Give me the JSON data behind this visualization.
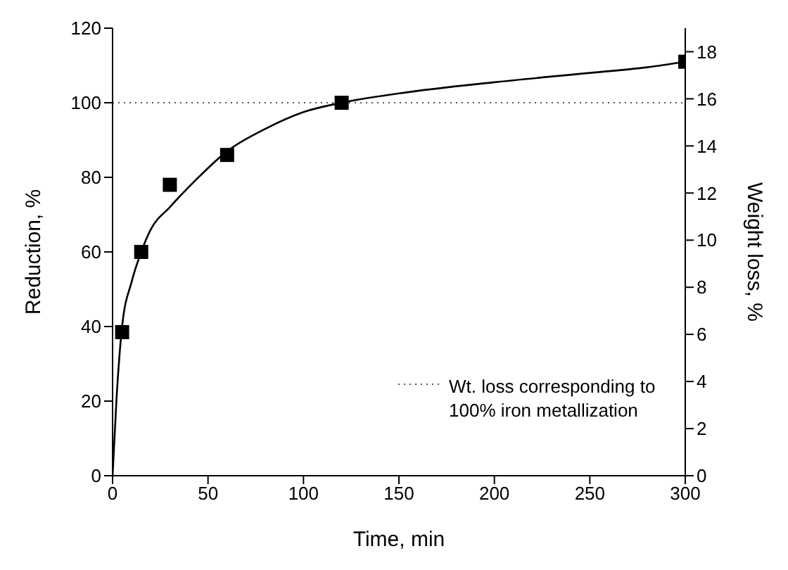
{
  "chart_data": {
    "type": "scatter",
    "xlabel": "Time, min",
    "ylabel": "Reduction, %",
    "y2label": "Weight loss, %",
    "xlim": [
      0,
      300
    ],
    "xticks": [
      0,
      50,
      100,
      150,
      200,
      250,
      300
    ],
    "ylim": [
      0,
      120
    ],
    "yticks": [
      0,
      20,
      40,
      60,
      80,
      100,
      120
    ],
    "y2lim": [
      0,
      19
    ],
    "y2ticks": [
      0,
      2,
      4,
      6,
      8,
      10,
      12,
      14,
      16,
      18
    ],
    "grid": false,
    "legend": "bottom right",
    "series": [
      {
        "color": "#000000",
        "marker": "square",
        "x": [
          5,
          15,
          30,
          60,
          120,
          300
        ],
        "values": [
          38.5,
          60,
          78,
          86,
          100,
          111
        ]
      },
      {
        "type": "line",
        "color": "#000000",
        "marker": "none",
        "line_style": "solid",
        "x": [
          0,
          2,
          5,
          10,
          15,
          20,
          30,
          45,
          60,
          80,
          100,
          120,
          150,
          200,
          250,
          280,
          300
        ],
        "values": [
          0,
          20,
          40,
          52,
          60,
          66,
          72,
          80,
          87,
          93,
          97.5,
          100,
          102.5,
          105.5,
          108,
          109.5,
          111
        ]
      }
    ],
    "ref_lines": [
      {
        "axis": "y",
        "value": 100,
        "label": "Wt. loss corresponding to 100% iron metallization",
        "color": "#555555",
        "line_style": "dotted"
      }
    ]
  }
}
